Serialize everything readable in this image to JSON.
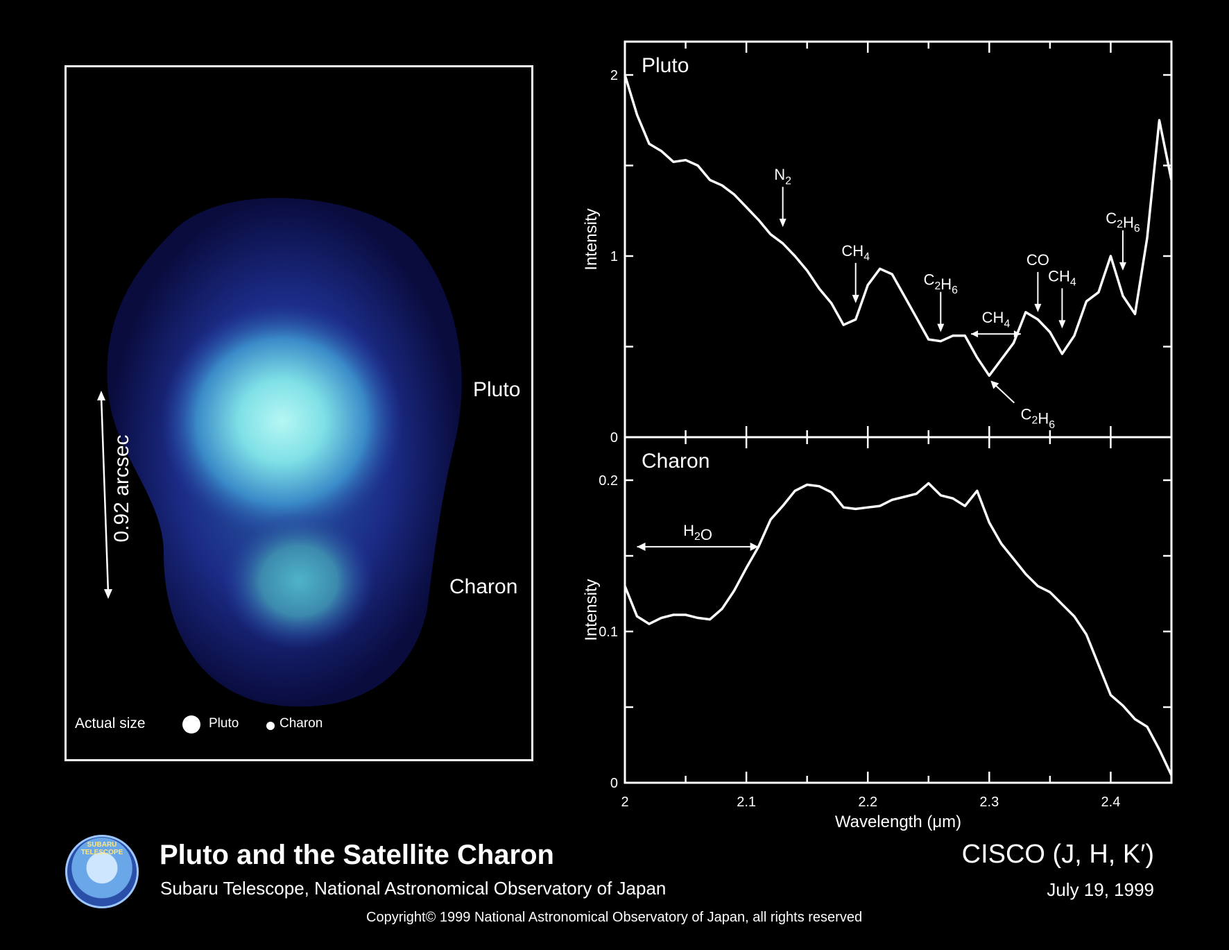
{
  "image_panel": {
    "pluto_label": "Pluto",
    "charon_label": "Charon",
    "scale_label": "0.92 arcsec",
    "actual_size_label": "Actual size",
    "legend_pluto": "Pluto",
    "legend_charon": "Charon"
  },
  "footer": {
    "title": "Pluto and the Satellite Charon",
    "subtitle": "Subaru Telescope, National Astronomical Observatory of Japan",
    "instrument": "CISCO (J, H, K′)",
    "date": "July 19, 1999",
    "copyright": "Copyright© 1999 National Astronomical Observatory of Japan, all rights reserved",
    "logo_text": "SUBARU TELESCOPE"
  },
  "colors": {
    "background": "#000000",
    "foreground": "#ffffff",
    "glow": "#8ff0f2",
    "halo": "#2a3aa0"
  },
  "chart_data": [
    {
      "type": "line",
      "panel_label": "Pluto",
      "xlabel": "Wavelength (μm)",
      "ylabel": "Intensity",
      "xlim": [
        2.0,
        2.45
      ],
      "ylim": [
        0,
        2.0
      ],
      "xticks": [
        2,
        2.1,
        2.2,
        2.3,
        2.4
      ],
      "yticks": [
        0,
        1,
        2
      ],
      "x": [
        2.0,
        2.01,
        2.02,
        2.03,
        2.04,
        2.05,
        2.06,
        2.07,
        2.08,
        2.09,
        2.1,
        2.11,
        2.12,
        2.13,
        2.14,
        2.15,
        2.16,
        2.17,
        2.18,
        2.19,
        2.2,
        2.21,
        2.22,
        2.23,
        2.24,
        2.25,
        2.26,
        2.27,
        2.28,
        2.29,
        2.3,
        2.31,
        2.32,
        2.33,
        2.34,
        2.35,
        2.36,
        2.37,
        2.38,
        2.39,
        2.4,
        2.41,
        2.42,
        2.43,
        2.44,
        2.45
      ],
      "y": [
        2.0,
        1.78,
        1.62,
        1.58,
        1.52,
        1.53,
        1.5,
        1.42,
        1.39,
        1.34,
        1.27,
        1.2,
        1.12,
        1.07,
        1.0,
        0.92,
        0.82,
        0.74,
        0.62,
        0.65,
        0.84,
        0.93,
        0.9,
        0.78,
        0.66,
        0.54,
        0.53,
        0.56,
        0.56,
        0.44,
        0.34,
        0.43,
        0.52,
        0.69,
        0.65,
        0.58,
        0.46,
        0.56,
        0.75,
        0.8,
        1.0,
        0.78,
        0.68,
        1.1,
        1.75,
        1.42
      ],
      "annotations": [
        {
          "text": "N2",
          "x": 2.13,
          "y": 1.16
        },
        {
          "text": "CH4",
          "x": 2.19,
          "y": 0.74
        },
        {
          "text": "C2H6",
          "x": 2.26,
          "y": 0.58
        },
        {
          "text": "CH4",
          "x": 2.305,
          "y": 0.57
        },
        {
          "text": "CO",
          "x": 2.34,
          "y": 0.69
        },
        {
          "text": "CH4",
          "x": 2.36,
          "y": 0.6
        },
        {
          "text": "C2H6",
          "x": 2.41,
          "y": 0.92
        },
        {
          "text": "C2H6",
          "x": 2.3,
          "y": 0.32
        }
      ]
    },
    {
      "type": "line",
      "panel_label": "Charon",
      "xlabel": "Wavelength (μm)",
      "ylabel": "Intensity",
      "xlim": [
        2.0,
        2.45
      ],
      "ylim": [
        0,
        0.2
      ],
      "xticks": [
        2,
        2.1,
        2.2,
        2.3,
        2.4
      ],
      "yticks": [
        0,
        0.1,
        0.2
      ],
      "x": [
        2.0,
        2.01,
        2.02,
        2.03,
        2.04,
        2.05,
        2.06,
        2.07,
        2.08,
        2.09,
        2.1,
        2.11,
        2.12,
        2.13,
        2.14,
        2.15,
        2.16,
        2.17,
        2.18,
        2.19,
        2.2,
        2.21,
        2.22,
        2.23,
        2.24,
        2.25,
        2.26,
        2.27,
        2.28,
        2.29,
        2.3,
        2.31,
        2.32,
        2.33,
        2.34,
        2.35,
        2.36,
        2.37,
        2.38,
        2.39,
        2.4,
        2.41,
        2.42,
        2.43,
        2.44,
        2.45
      ],
      "y": [
        0.13,
        0.11,
        0.105,
        0.109,
        0.111,
        0.111,
        0.109,
        0.108,
        0.115,
        0.127,
        0.142,
        0.156,
        0.174,
        0.183,
        0.193,
        0.197,
        0.196,
        0.192,
        0.182,
        0.181,
        0.182,
        0.183,
        0.187,
        0.189,
        0.191,
        0.198,
        0.19,
        0.188,
        0.183,
        0.193,
        0.172,
        0.158,
        0.148,
        0.138,
        0.13,
        0.126,
        0.118,
        0.11,
        0.098,
        0.078,
        0.058,
        0.051,
        0.042,
        0.037,
        0.022,
        0.005
      ],
      "annotations": [
        {
          "text": "H2O",
          "x": 2.05,
          "y": 0.156
        }
      ]
    }
  ]
}
